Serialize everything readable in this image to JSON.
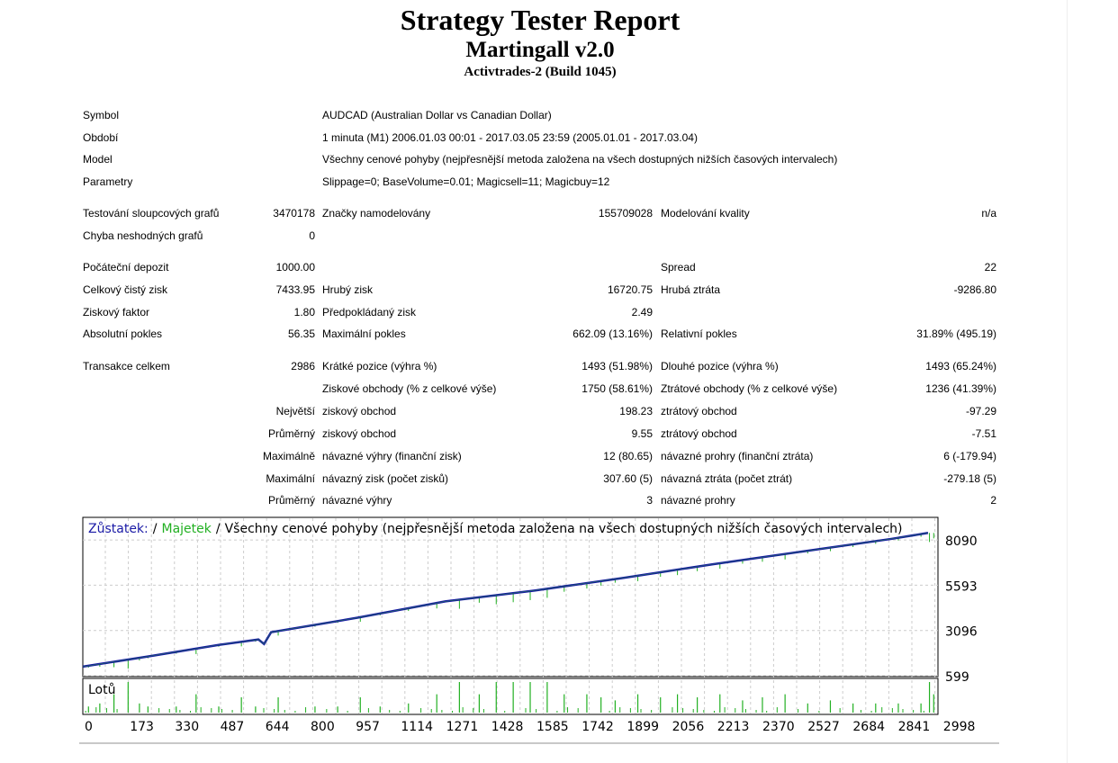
{
  "header": {
    "title": "Strategy Tester Report",
    "subtitle": "Martingall v2.0",
    "server": "Activtrades-2 (Build 1045)"
  },
  "info": [
    {
      "label": "Symbol",
      "value": "AUDCAD (Australian Dollar vs Canadian Dollar)"
    },
    {
      "label": "Období",
      "value": "1 minuta (M1) 2006.01.03 00:01 - 2017.03.05 23:59 (2005.01.01 - 2017.03.04)"
    },
    {
      "label": "Model",
      "value": "Všechny cenové pohyby (nejpřesnější metoda založena na všech dostupných nižších časových intervalech)"
    },
    {
      "label": "Parametry",
      "value": "Slippage=0; BaseVolume=0.01; Magicsell=11; Magicbuy=12"
    }
  ],
  "stats": [
    {
      "c1": "Testování sloupcových grafů",
      "v1": "3470178",
      "c2": "Značky namodelovány",
      "v2": "155709028",
      "c3": "Modelování kvality",
      "v3": "n/a"
    },
    {
      "c1": "Chyba neshodných grafů",
      "v1": "0"
    },
    {
      "c1": "Počáteční depozit",
      "v1": "1000.00",
      "c3": "Spread",
      "v3": "22"
    },
    {
      "c1": "Celkový čistý zisk",
      "v1": "7433.95",
      "c2": "Hrubý zisk",
      "v2": "16720.75",
      "c3": "Hrubá ztráta",
      "v3": "-9286.80"
    },
    {
      "c1": "Ziskový faktor",
      "v1": "1.80",
      "c2": "Předpokládaný zisk",
      "v2": "2.49"
    },
    {
      "c1": "Absolutní pokles",
      "v1": "56.35",
      "c2": "Maximální pokles",
      "v2": "662.09 (13.16%)",
      "c3": "Relativní pokles",
      "v3": "31.89% (495.19)"
    },
    {
      "c1": "Transakce celkem",
      "v1": "2986",
      "c2": "Krátké pozice (výhra %)",
      "v2": "1493 (51.98%)",
      "c3": "Dlouhé pozice (výhra %)",
      "v3": "1493 (65.24%)"
    },
    {
      "c2": "Ziskové obchody (% z celkové výše)",
      "v2": "1750 (58.61%)",
      "c3": "Ztrátové obchody (% z celkové výše)",
      "v3": "1236 (41.39%)"
    },
    {
      "v1": "Největší",
      "c2": "ziskový obchod",
      "v2": "198.23",
      "c3": "ztrátový obchod",
      "v3": "-97.29"
    },
    {
      "v1": "Průměrný",
      "c2": "ziskový obchod",
      "v2": "9.55",
      "c3": "ztrátový obchod",
      "v3": "-7.51"
    },
    {
      "v1": "Maximálně",
      "c2": "návazné výhry (finanční zisk)",
      "v2": "12 (80.65)",
      "c3": "návazné prohry (finanční ztráta)",
      "v3": "6 (-179.94)"
    },
    {
      "v1": "Maximální",
      "c2": "návazný zisk (počet zisků)",
      "v2": "307.60 (5)",
      "c3": "návazná ztráta (počet ztrát)",
      "v3": "-279.18 (5)"
    },
    {
      "v1": "Průměrný",
      "c2": "návazné výhry",
      "v2": "3",
      "c3": "návazné prohry",
      "v3": "2"
    }
  ],
  "chart_data": {
    "type": "line",
    "legend": {
      "balance": "Zůstatek:",
      "equity": "Majetek",
      "sep": "/",
      "model": "Všechny cenové pohyby (nejpřesnější metoda založena na všech dostupných nižších časových intervalech)"
    },
    "colors": {
      "balance": "#1a1aa6",
      "equity": "#22b022",
      "lots": "#22b022"
    },
    "y_ticks": [
      "8090",
      "5593",
      "3096",
      "599"
    ],
    "x_ticks": [
      "0",
      "173",
      "330",
      "487",
      "644",
      "800",
      "957",
      "1114",
      "1271",
      "1428",
      "1585",
      "1742",
      "1899",
      "2056",
      "2213",
      "2370",
      "2527",
      "2684",
      "2841",
      "2998"
    ],
    "ylim": [
      550,
      9338
    ],
    "xlim": [
      0,
      3020
    ],
    "grid": true,
    "balance": {
      "x": [
        0,
        245,
        480,
        620,
        640,
        665,
        970,
        1280,
        1595,
        1910,
        2225,
        2540,
        2855,
        2985
      ],
      "y": [
        1100,
        1700,
        2300,
        2600,
        2350,
        3000,
        3800,
        4700,
        5300,
        6000,
        6750,
        7450,
        8150,
        8480
      ]
    },
    "lots_label": "Lotů",
    "lots": {
      "x": [
        20,
        60,
        110,
        160,
        200,
        230,
        330,
        400,
        480,
        560,
        610,
        690,
        820,
        900,
        980,
        1050,
        1150,
        1250,
        1330,
        1400,
        1460,
        1520,
        1580,
        1640,
        1700,
        1780,
        1830,
        1880,
        1960,
        2040,
        2100,
        2170,
        2250,
        2330,
        2400,
        2480,
        2560,
        2640,
        2720,
        2800,
        2880,
        2960,
        2990,
        3005
      ],
      "y": [
        0.2,
        0.3,
        0.6,
        1,
        0.3,
        0.2,
        0.2,
        0.6,
        0.2,
        0.5,
        0.2,
        0.5,
        0.2,
        0.2,
        0.5,
        0.2,
        0.3,
        0.6,
        1,
        0.6,
        1,
        1,
        1,
        1,
        0.6,
        0.6,
        0.5,
        0.4,
        0.6,
        0.5,
        0.6,
        0.5,
        0.6,
        0.4,
        0.5,
        0.6,
        0.3,
        0.4,
        0.3,
        0.3,
        0.3,
        0.3,
        1,
        0.6
      ]
    }
  }
}
